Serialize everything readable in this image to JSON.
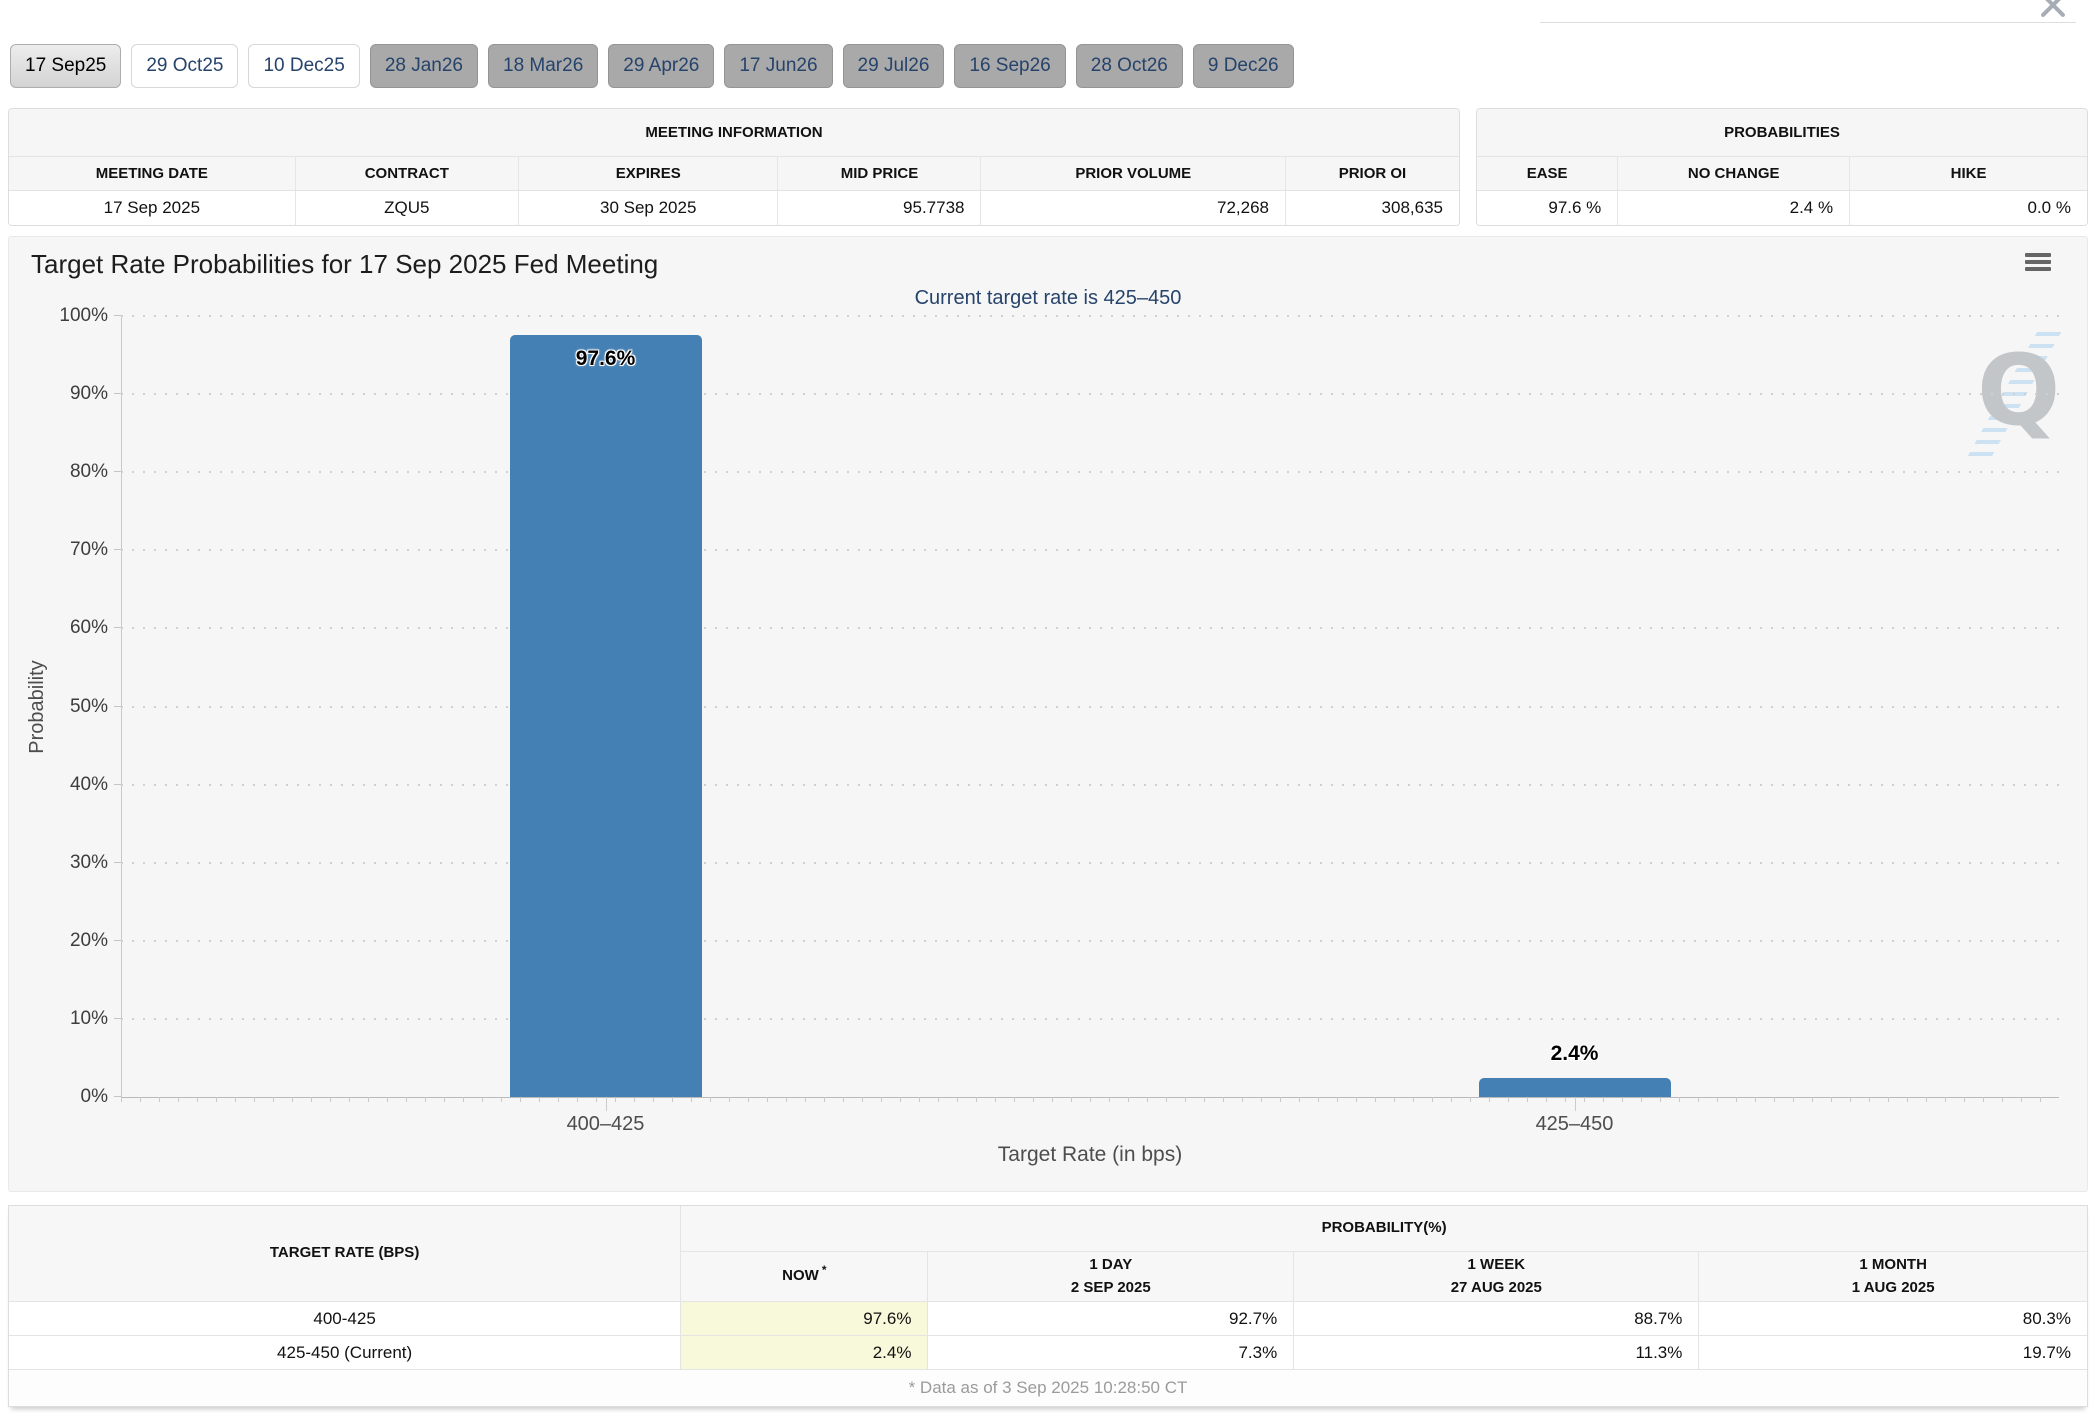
{
  "chrome": {
    "close_icon": "x"
  },
  "tabs": [
    {
      "label": "17 Sep25",
      "state": "selected"
    },
    {
      "label": "29 Oct25",
      "state": "open"
    },
    {
      "label": "10 Dec25",
      "state": "open"
    },
    {
      "label": "28 Jan26",
      "state": "far"
    },
    {
      "label": "18 Mar26",
      "state": "far"
    },
    {
      "label": "29 Apr26",
      "state": "far"
    },
    {
      "label": "17 Jun26",
      "state": "far"
    },
    {
      "label": "29 Jul26",
      "state": "far"
    },
    {
      "label": "16 Sep26",
      "state": "far"
    },
    {
      "label": "28 Oct26",
      "state": "far"
    },
    {
      "label": "9 Dec26",
      "state": "far"
    }
  ],
  "meeting_info": {
    "title": "MEETING INFORMATION",
    "headers": [
      "MEETING DATE",
      "CONTRACT",
      "EXPIRES",
      "MID PRICE",
      "PRIOR VOLUME",
      "PRIOR OI"
    ],
    "values": [
      "17 Sep 2025",
      "ZQU5",
      "30 Sep 2025",
      "95.7738",
      "72,268",
      "308,635"
    ]
  },
  "probabilities": {
    "title": "PROBABILITIES",
    "headers": [
      "EASE",
      "NO CHANGE",
      "HIKE"
    ],
    "values": [
      "97.6 %",
      "2.4 %",
      "0.0 %"
    ]
  },
  "chart_data": {
    "type": "bar",
    "title": "Target Rate Probabilities for 17 Sep 2025 Fed Meeting",
    "subtitle": "Current target rate is 425–450",
    "categories": [
      "400–425",
      "425–450"
    ],
    "values": [
      97.6,
      2.4
    ],
    "data_labels": [
      "97.6%",
      "2.4%"
    ],
    "xlabel": "Target Rate (in bps)",
    "ylabel": "Probability",
    "ylim": [
      0,
      100
    ],
    "ytick_step": 10,
    "ytick_suffix": "%",
    "grid": "dotted-horizontal",
    "legend": "none",
    "bar_color": "#4580b4",
    "watermark_letter": "Q"
  },
  "history_table": {
    "rate_header": "TARGET RATE (BPS)",
    "group_header": "PROBABILITY(%)",
    "columns": [
      {
        "line1": "NOW",
        "sup": "*",
        "line2": ""
      },
      {
        "line1": "1 DAY",
        "sup": "",
        "line2": "2 SEP 2025"
      },
      {
        "line1": "1 WEEK",
        "sup": "",
        "line2": "27 AUG 2025"
      },
      {
        "line1": "1 MONTH",
        "sup": "",
        "line2": "1 AUG 2025"
      }
    ],
    "rows": [
      {
        "rate": "400-425",
        "values": [
          "97.6%",
          "92.7%",
          "88.7%",
          "80.3%"
        ]
      },
      {
        "rate": "425-450 (Current)",
        "values": [
          "2.4%",
          "7.3%",
          "11.3%",
          "19.7%"
        ]
      }
    ],
    "footnote": "* Data as of 3 Sep 2025 10:28:50 CT"
  },
  "colors": {
    "bar": "#4580b4",
    "now_highlight": "#f8f8da",
    "navy": "#26436b"
  }
}
